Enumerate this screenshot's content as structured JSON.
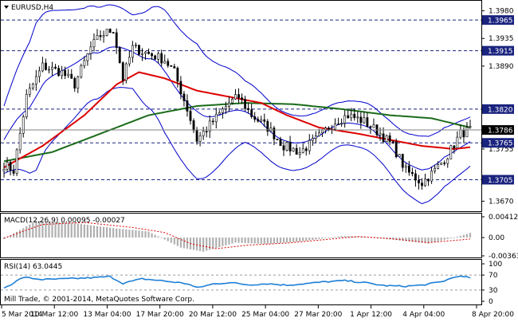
{
  "chart_title": "EURUSD,H4",
  "footer_copyright": "Mill Trade, © 2001-2014, MetaQuotes Software Corp.",
  "colors": {
    "candles": "#000000",
    "bollinger": "#0000cc",
    "ma_fast": "#dd0000",
    "ma_slow": "#1a6b1a",
    "price_line": "#808080",
    "level_line": "#1a237e",
    "macd_hist": "#b0b0b0",
    "macd_signal": "#dd0000",
    "rsi_line": "#1e7fd6",
    "label_bg": "#1a237e",
    "label_text": "#ffffff"
  },
  "main_panel": {
    "axis_labels": [
      "1.3980",
      "1.3935",
      "1.3890",
      "1.3755",
      "1.3670"
    ],
    "levels": [
      {
        "value": "1.3965",
        "price": 1.3965
      },
      {
        "value": "1.3915",
        "price": 1.3915
      },
      {
        "value": "1.3820",
        "price": 1.382
      },
      {
        "value": "1.3765",
        "price": 1.3765
      },
      {
        "value": "1.3705",
        "price": 1.3705
      }
    ],
    "current_price": {
      "value": "1.3786",
      "price": 1.3786
    }
  },
  "macd_panel": {
    "title": "MACD(12,26,9) 0.00095 -0.00027",
    "axis_labels": [
      "0.00412",
      "0.00",
      "-0.00363"
    ]
  },
  "rsi_panel": {
    "title": "RSI(14) 63.0445",
    "axis_labels": [
      "100",
      "70",
      "30",
      "0"
    ]
  },
  "time_axis": [
    "5 Mar 2014",
    "10 Mar 12:00",
    "13 Mar 04:00",
    "17 Mar 20:00",
    "20 Mar 12:00",
    "25 Mar 04:00",
    "27 Mar 20:00",
    "1 Apr 12:00",
    "4 Apr 04:00",
    "8 Apr 20:00"
  ],
  "chart_data": {
    "type": "candlestick",
    "symbol": "EURUSD",
    "timeframe": "H4",
    "ylim": [
      1.3655,
      1.3995
    ],
    "price_anchors": [
      [
        0,
        1.373
      ],
      [
        3,
        1.372
      ],
      [
        7,
        1.384
      ],
      [
        12,
        1.389
      ],
      [
        18,
        1.388
      ],
      [
        22,
        1.386
      ],
      [
        27,
        1.392
      ],
      [
        30,
        1.394
      ],
      [
        34,
        1.395
      ],
      [
        37,
        1.387
      ],
      [
        40,
        1.392
      ],
      [
        45,
        1.391
      ],
      [
        50,
        1.39
      ],
      [
        53,
        1.388
      ],
      [
        57,
        1.382
      ],
      [
        60,
        1.377
      ],
      [
        65,
        1.38
      ],
      [
        70,
        1.383
      ],
      [
        73,
        1.384
      ],
      [
        77,
        1.381
      ],
      [
        82,
        1.379
      ],
      [
        87,
        1.376
      ],
      [
        92,
        1.375
      ],
      [
        97,
        1.377
      ],
      [
        103,
        1.38
      ],
      [
        107,
        1.381
      ],
      [
        112,
        1.38
      ],
      [
        117,
        1.378
      ],
      [
        121,
        1.376
      ],
      [
        125,
        1.372
      ],
      [
        130,
        1.37
      ],
      [
        134,
        1.372
      ],
      [
        138,
        1.3745
      ],
      [
        142,
        1.378
      ],
      [
        145,
        1.3786
      ]
    ],
    "ma_fast_anchors": [
      [
        0,
        1.3725
      ],
      [
        12,
        1.376
      ],
      [
        25,
        1.381
      ],
      [
        35,
        1.386
      ],
      [
        42,
        1.388
      ],
      [
        50,
        1.387
      ],
      [
        60,
        1.385
      ],
      [
        70,
        1.384
      ],
      [
        80,
        1.383
      ],
      [
        88,
        1.381
      ],
      [
        98,
        1.379
      ],
      [
        110,
        1.378
      ],
      [
        120,
        1.377
      ],
      [
        130,
        1.376
      ],
      [
        140,
        1.3755
      ],
      [
        145,
        1.3758
      ]
    ],
    "ma_slow_anchors": [
      [
        0,
        1.3735
      ],
      [
        15,
        1.375
      ],
      [
        30,
        1.378
      ],
      [
        45,
        1.381
      ],
      [
        60,
        1.3825
      ],
      [
        75,
        1.383
      ],
      [
        90,
        1.3828
      ],
      [
        105,
        1.382
      ],
      [
        120,
        1.381
      ],
      [
        133,
        1.3805
      ],
      [
        145,
        1.379
      ]
    ],
    "bb_width_anchors": [
      [
        0,
        0.0055
      ],
      [
        10,
        0.012
      ],
      [
        25,
        0.008
      ],
      [
        40,
        0.006
      ],
      [
        50,
        0.01
      ],
      [
        60,
        0.011
      ],
      [
        75,
        0.005
      ],
      [
        90,
        0.0045
      ],
      [
        105,
        0.0035
      ],
      [
        118,
        0.004
      ],
      [
        130,
        0.0055
      ],
      [
        145,
        0.004
      ]
    ],
    "macd_hist_anchors": [
      [
        0,
        -0.0003
      ],
      [
        10,
        0.0033
      ],
      [
        20,
        0.003
      ],
      [
        35,
        0.0018
      ],
      [
        45,
        0.0012
      ],
      [
        55,
        -0.002
      ],
      [
        62,
        -0.0028
      ],
      [
        72,
        -0.001
      ],
      [
        82,
        -0.0013
      ],
      [
        92,
        -0.0008
      ],
      [
        105,
        0.0003
      ],
      [
        112,
        0.0002
      ],
      [
        122,
        -0.0005
      ],
      [
        132,
        -0.0012
      ],
      [
        140,
        0.0
      ],
      [
        145,
        0.0009
      ]
    ],
    "macd_signal_anchors": [
      [
        0,
        -0.0001
      ],
      [
        12,
        0.0026
      ],
      [
        25,
        0.003
      ],
      [
        40,
        0.002
      ],
      [
        50,
        0.001
      ],
      [
        58,
        -0.0012
      ],
      [
        66,
        -0.0022
      ],
      [
        76,
        -0.0015
      ],
      [
        88,
        -0.0011
      ],
      [
        100,
        -0.0004
      ],
      [
        110,
        0.0002
      ],
      [
        120,
        -0.0002
      ],
      [
        132,
        -0.001
      ],
      [
        145,
        -0.0003
      ]
    ],
    "rsi_anchors": [
      [
        0,
        35
      ],
      [
        6,
        64
      ],
      [
        12,
        58
      ],
      [
        20,
        60
      ],
      [
        28,
        63
      ],
      [
        33,
        66
      ],
      [
        37,
        48
      ],
      [
        43,
        60
      ],
      [
        50,
        54
      ],
      [
        57,
        47
      ],
      [
        60,
        36
      ],
      [
        65,
        46
      ],
      [
        70,
        50
      ],
      [
        76,
        44
      ],
      [
        82,
        47
      ],
      [
        88,
        43
      ],
      [
        95,
        48
      ],
      [
        100,
        52
      ],
      [
        106,
        55
      ],
      [
        112,
        50
      ],
      [
        118,
        42
      ],
      [
        124,
        40
      ],
      [
        130,
        43
      ],
      [
        136,
        52
      ],
      [
        141,
        67
      ],
      [
        145,
        63
      ]
    ],
    "bar_count": 146
  }
}
